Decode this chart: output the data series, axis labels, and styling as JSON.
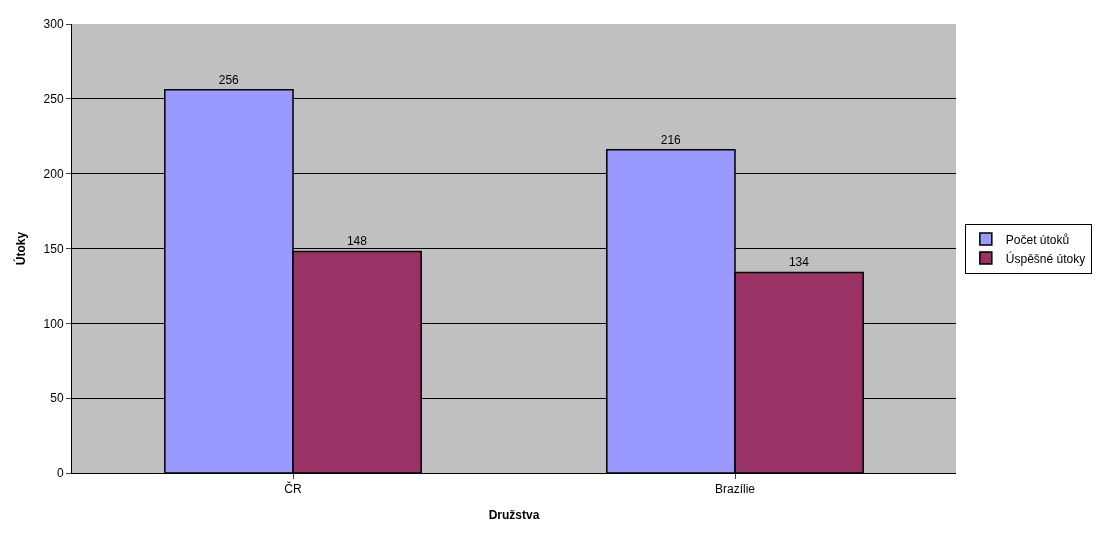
{
  "chart_data": {
    "type": "bar",
    "xlabel": "Družstva",
    "ylabel": "Útoky",
    "categories": [
      "ČR",
      "Brazílie"
    ],
    "series": [
      {
        "name": "Počet útoků",
        "color": "#9999ff",
        "values": [
          256,
          216
        ]
      },
      {
        "name": "Úspěšné útoky",
        "color": "#993366",
        "values": [
          148,
          134
        ]
      }
    ],
    "ylim": [
      0,
      300
    ],
    "yticks": [
      0,
      50,
      100,
      150,
      200,
      250,
      300
    ],
    "grid": "y",
    "legend": "right",
    "data_labels": true
  }
}
